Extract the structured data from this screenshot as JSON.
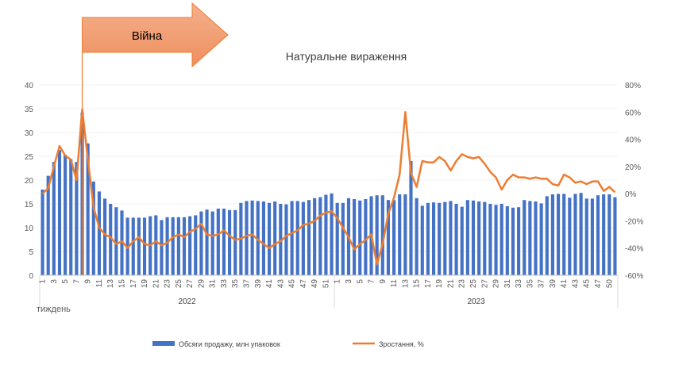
{
  "chart_data": {
    "type": "bar",
    "title": "Натуральне вираження",
    "xlabel": "тиждень",
    "annotation": "Війна",
    "war_week_index": 7,
    "years": [
      {
        "label": "2022",
        "start": 0,
        "end": 51
      },
      {
        "label": "2023",
        "start": 52,
        "end": 101
      }
    ],
    "x_tick_labels_2022": [
      "1",
      "3",
      "5",
      "7",
      "9",
      "11",
      "13",
      "15",
      "17",
      "19",
      "21",
      "23",
      "25",
      "27",
      "29",
      "31",
      "33",
      "35",
      "37",
      "39",
      "41",
      "43",
      "45",
      "47",
      "49",
      "51"
    ],
    "x_tick_labels_2023": [
      "1",
      "3",
      "5",
      "7",
      "9",
      "11",
      "13",
      "15",
      "17",
      "19",
      "21",
      "23",
      "25",
      "27",
      "29",
      "31",
      "33",
      "35",
      "37",
      "39",
      "41",
      "43",
      "45",
      "47",
      "50"
    ],
    "ylim_left": [
      0,
      40
    ],
    "yticks_left": [
      "0",
      "5",
      "10",
      "15",
      "20",
      "25",
      "30",
      "35",
      "40"
    ],
    "ylim_right": [
      -60,
      80
    ],
    "yticks_right": [
      "-60%",
      "-40%",
      "-20%",
      "0%",
      "20%",
      "40%",
      "60%",
      "80%"
    ],
    "legend_position": "bottom",
    "series": [
      {
        "name": "Обсяги продажу, млн упаковок",
        "axis": "left",
        "color": "#4472C4",
        "values": [
          18,
          20.9,
          23.8,
          26.3,
          25.3,
          24.4,
          23.8,
          34.2,
          27.7,
          19.7,
          17.6,
          16.1,
          15,
          14.3,
          13.6,
          12.1,
          12.1,
          12.1,
          12.1,
          12.4,
          12.6,
          11.6,
          12.2,
          12.2,
          12.2,
          12.2,
          12.4,
          12.6,
          13.4,
          13.8,
          13.4,
          14,
          14,
          13.7,
          13.7,
          15.2,
          15.6,
          15.7,
          15.6,
          15.5,
          15.2,
          15.5,
          15,
          14.9,
          15.6,
          15.6,
          15.4,
          15.8,
          16.2,
          16.4,
          16.9,
          17.2,
          15.2,
          15.2,
          16.2,
          16,
          15.7,
          16,
          16.6,
          16.8,
          16.8,
          15.8,
          15.8,
          17,
          17,
          24,
          16.2,
          14.6,
          15.2,
          15.3,
          15.2,
          15.4,
          15.6,
          15,
          14.4,
          15.8,
          15.7,
          15.5,
          15.4,
          15,
          14.8,
          15,
          14.5,
          14.2,
          14.3,
          15.8,
          15.6,
          15.5,
          15.1,
          16.6,
          17,
          17.1,
          17.1,
          16.3,
          17.1,
          17.3,
          16.1,
          16.1,
          16.8,
          17,
          17,
          16.4
        ]
      },
      {
        "name": "Зростання, %",
        "axis": "right",
        "color": "#ED7D31",
        "values": [
          0,
          4,
          20,
          35,
          28,
          25,
          10,
          62,
          25,
          -10,
          -25,
          -30,
          -32,
          -37,
          -35,
          -40,
          -35,
          -32,
          -37,
          -38,
          -35,
          -38,
          -36,
          -32,
          -30,
          -32,
          -28,
          -26,
          -22,
          -30,
          -31,
          -30,
          -27,
          -31,
          -34,
          -33,
          -31,
          -30,
          -34,
          -37,
          -40,
          -37,
          -35,
          -31,
          -29,
          -27,
          -23,
          -22,
          -20,
          -16,
          -14,
          -13,
          -18,
          -25,
          -32,
          -41,
          -37,
          -34,
          -30,
          -52,
          -37,
          -15,
          -3,
          14,
          60,
          15,
          5,
          24,
          23,
          23,
          27,
          24,
          17,
          24,
          29,
          27,
          26,
          27,
          22,
          16,
          12,
          3,
          10,
          14,
          12,
          12,
          11,
          12,
          11,
          11,
          7,
          6,
          14,
          12,
          8,
          9,
          7,
          9,
          9,
          2,
          5,
          1
        ]
      }
    ]
  }
}
